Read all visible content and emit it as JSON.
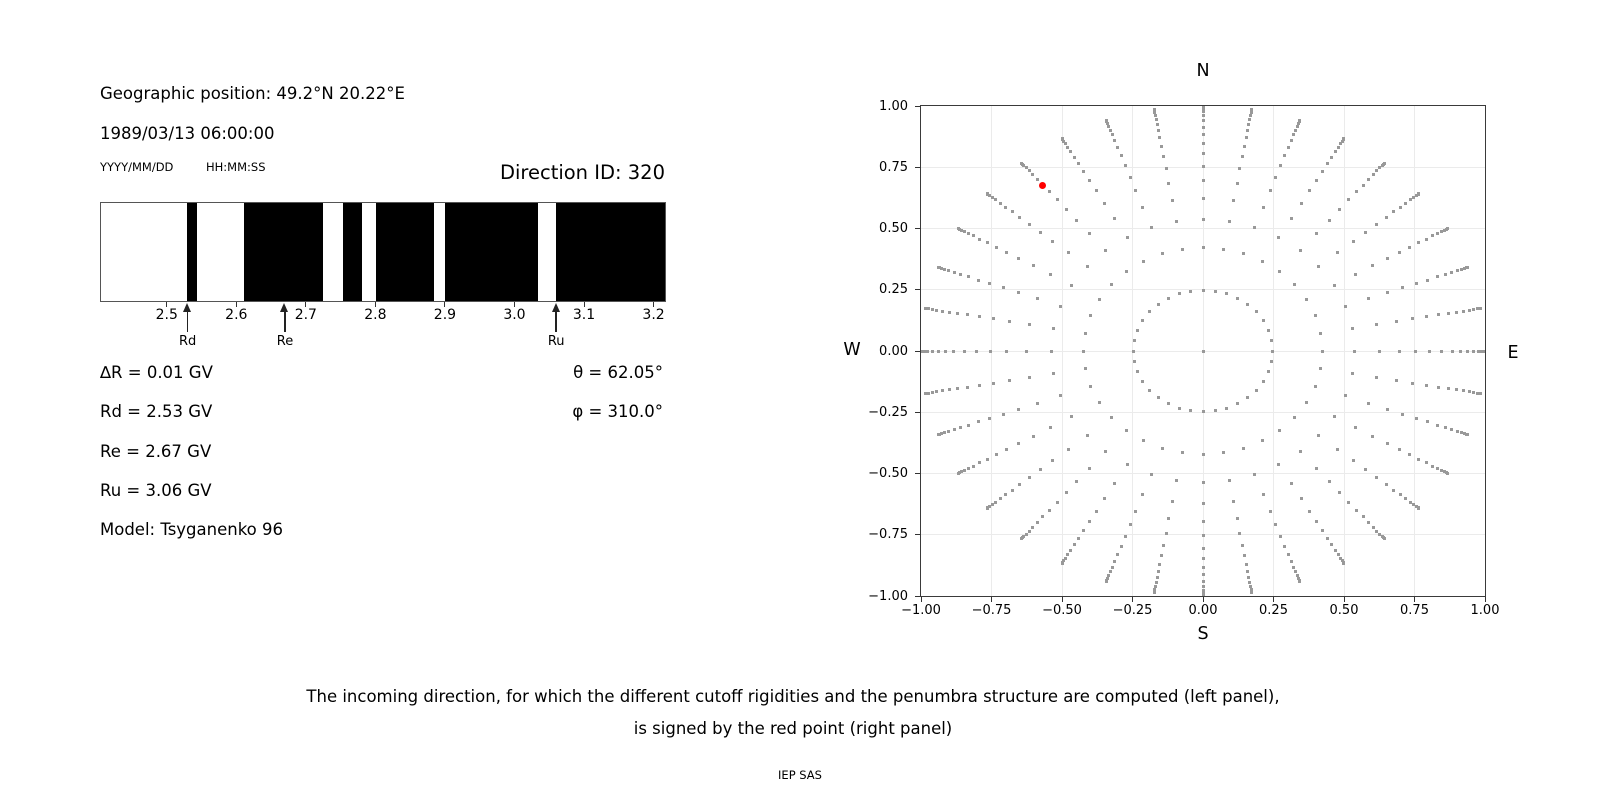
{
  "figure": {
    "caption_line1": "The incoming direction, for which the different cutoff rigidities and the penumbra structure are computed (left panel),",
    "caption_line2": "is signed by the red point (right panel)",
    "credit": "IEP SAS"
  },
  "left_panel": {
    "geo_position": "Geographic position: 49.2°N 20.22°E",
    "datetime": "1989/03/13 06:00:00",
    "date_format": "YYYY/MM/DD",
    "time_format": "HH:MM:SS",
    "direction_id": "Direction ID: 320",
    "params_left": [
      "∆R = 0.01 GV",
      "Rd = 2.53 GV",
      "Re = 2.67 GV",
      "Ru = 3.06 GV",
      "Model: Tsyganenko 96"
    ],
    "params_right": [
      "θ = 62.05°",
      "φ = 310.0°"
    ]
  },
  "chart_data": [
    {
      "type": "bar",
      "name": "penumbra-structure",
      "title": "Direction ID: 320",
      "xlabel": "",
      "ylabel": "",
      "xlim": [
        2.404,
        3.215
      ],
      "xticks": [
        2.5,
        2.6,
        2.7,
        2.8,
        2.9,
        3.0,
        3.1,
        3.2
      ],
      "tick_decimals": 1,
      "delta_R_GV": 0.01,
      "allowed_bands_GV": [
        [
          2.528,
          2.542
        ],
        [
          2.609,
          2.723
        ],
        [
          2.752,
          2.779
        ],
        [
          2.8,
          2.883
        ],
        [
          2.899,
          3.032
        ],
        [
          3.058,
          3.215
        ]
      ],
      "band_colors": {
        "allowed": "#000000",
        "forbidden": "#ffffff"
      },
      "markers": [
        {
          "label": "Rd",
          "R_GV": 2.53
        },
        {
          "label": "Re",
          "R_GV": 2.67
        },
        {
          "label": "Ru",
          "R_GV": 3.06
        }
      ]
    },
    {
      "type": "scatter",
      "name": "arrival-direction-grid",
      "xlim": [
        -1,
        1
      ],
      "ylim": [
        -1,
        1
      ],
      "xticks": [
        -1,
        -0.75,
        -0.5,
        -0.25,
        0,
        0.25,
        0.5,
        0.75,
        1
      ],
      "yticks": [
        -1,
        -0.75,
        -0.5,
        -0.25,
        0,
        0.25,
        0.5,
        0.75,
        1
      ],
      "tick_decimals": 2,
      "grid": true,
      "grid_color": "#ebebeb",
      "compass": {
        "n": "N",
        "e": "E",
        "s": "S",
        "w": "W"
      },
      "azimuth_deg": {
        "start": 0,
        "step": 10,
        "count": 36
      },
      "zenith_radii": [
        0.2481,
        0.4227,
        0.5367,
        0.6242,
        0.6953,
        0.7545,
        0.8046,
        0.8472,
        0.8833,
        0.9138,
        0.9391,
        0.9596,
        0.9758,
        0.9877,
        0.9956,
        0.9995
      ],
      "has_center_point": true,
      "point_color": "#999999",
      "highlight_point": {
        "azimuth_deg": 320,
        "radius": 0.8833,
        "x": -0.568,
        "y": 0.677,
        "color": "#ff0000"
      }
    }
  ]
}
